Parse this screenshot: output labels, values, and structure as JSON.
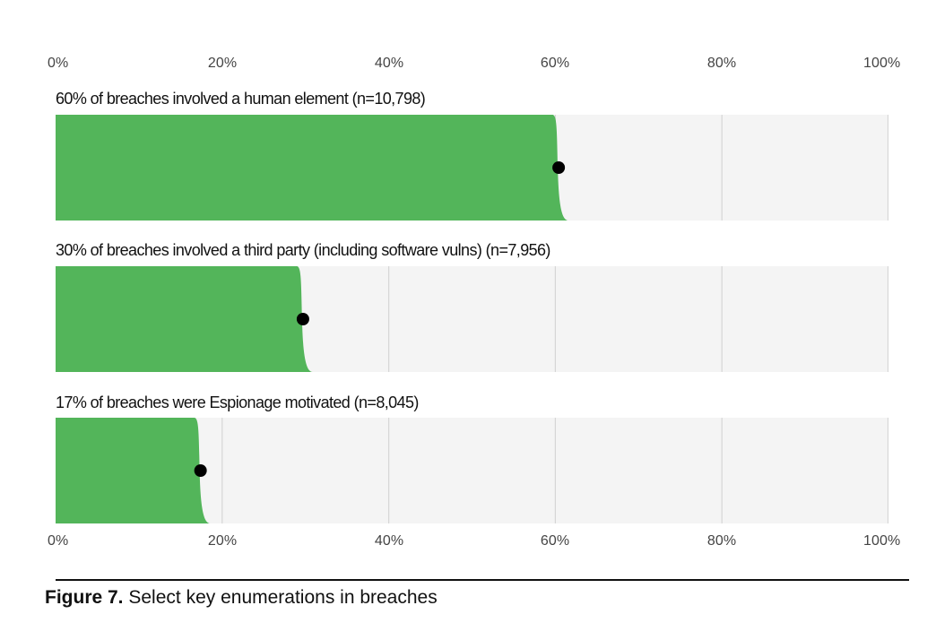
{
  "chart_data": {
    "type": "bar",
    "xlim": [
      0,
      100
    ],
    "x_ticks": [
      "0%",
      "20%",
      "40%",
      "60%",
      "80%",
      "100%"
    ],
    "gridlines": [
      20,
      40,
      60,
      80,
      100
    ],
    "grid": true,
    "axis_position": "top and bottom",
    "series": [
      {
        "label": "60% of breaches involved a human element (n=10,798)",
        "value": 60.4
      },
      {
        "label": "30% of breaches involved a third party (including software vulns) (n=7,956)",
        "value": 29.7
      },
      {
        "label": "17% of breaches were Espionage motivated (n=8,045)",
        "value": 17.4
      }
    ],
    "colors": {
      "bar": "#53b55a",
      "panel": "#f4f4f4",
      "grid": "#d6d6d6",
      "point": "#000000"
    }
  },
  "caption": {
    "lead": "Figure 7.",
    "text": " Select key enumerations in breaches"
  }
}
